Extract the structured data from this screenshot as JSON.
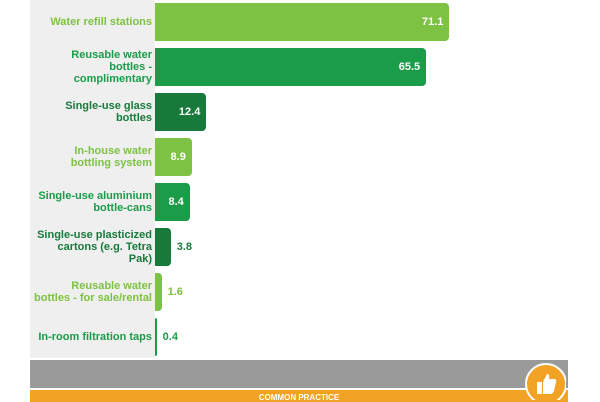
{
  "chart_data": {
    "type": "bar",
    "orientation": "horizontal",
    "categories": [
      "Water refill stations",
      "Reusable water bottles - complimentary",
      "Single-use glass bottles",
      "In-house water bottling system",
      "Single-use aluminium bottle-cans",
      "Single-use plasticized cartons (e.g. Tetra Pak)",
      "Reusable water bottles - for sale/rental",
      "In-room filtration taps"
    ],
    "values": [
      71.1,
      65.5,
      12.4,
      8.9,
      8.4,
      3.8,
      1.6,
      0.4
    ],
    "colors": [
      "#7dc242",
      "#1a9c48",
      "#177a3b",
      "#7dc242",
      "#1a9c48",
      "#177a3b",
      "#7dc242",
      "#1a9c48"
    ]
  },
  "footer": {
    "label": "COMMON PRACTICE"
  }
}
